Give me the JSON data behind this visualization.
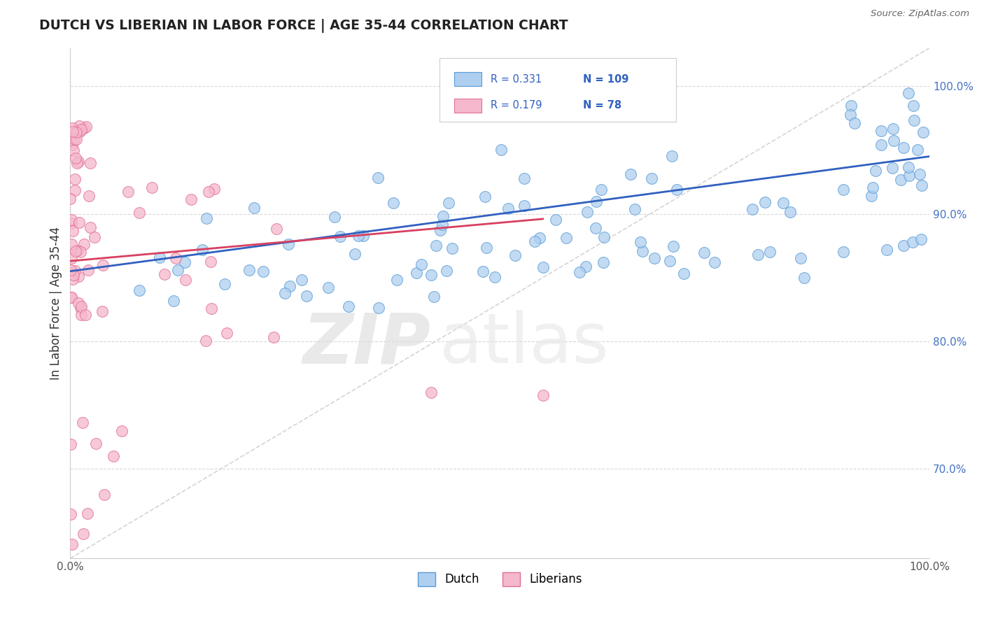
{
  "title": "DUTCH VS LIBERIAN IN LABOR FORCE | AGE 35-44 CORRELATION CHART",
  "source_text": "Source: ZipAtlas.com",
  "ylabel": "In Labor Force | Age 35-44",
  "xlim": [
    0.0,
    1.0
  ],
  "ylim": [
    0.63,
    1.03
  ],
  "yticks": [
    0.7,
    0.8,
    0.9,
    1.0
  ],
  "ytick_labels": [
    "70.0%",
    "80.0%",
    "90.0%",
    "100.0%"
  ],
  "xtick_labels": [
    "0.0%",
    "100.0%"
  ],
  "watermark_left": "ZIP",
  "watermark_right": "atlas",
  "dutch_R": 0.331,
  "dutch_N": 109,
  "liberian_R": 0.179,
  "liberian_N": 78,
  "dutch_color": "#aecff0",
  "dutch_edge": "#5b9bd5",
  "liberian_color": "#f5b8cc",
  "liberian_edge": "#e07090",
  "dutch_trend_color": "#3060c0",
  "liberian_trend_color": "#d84060",
  "diagonal_color": "#d0d0d0",
  "background_color": "#ffffff",
  "grid_color": "#d8d8d8",
  "tick_color": "#4472c4",
  "title_color": "#222222",
  "source_color": "#666666"
}
